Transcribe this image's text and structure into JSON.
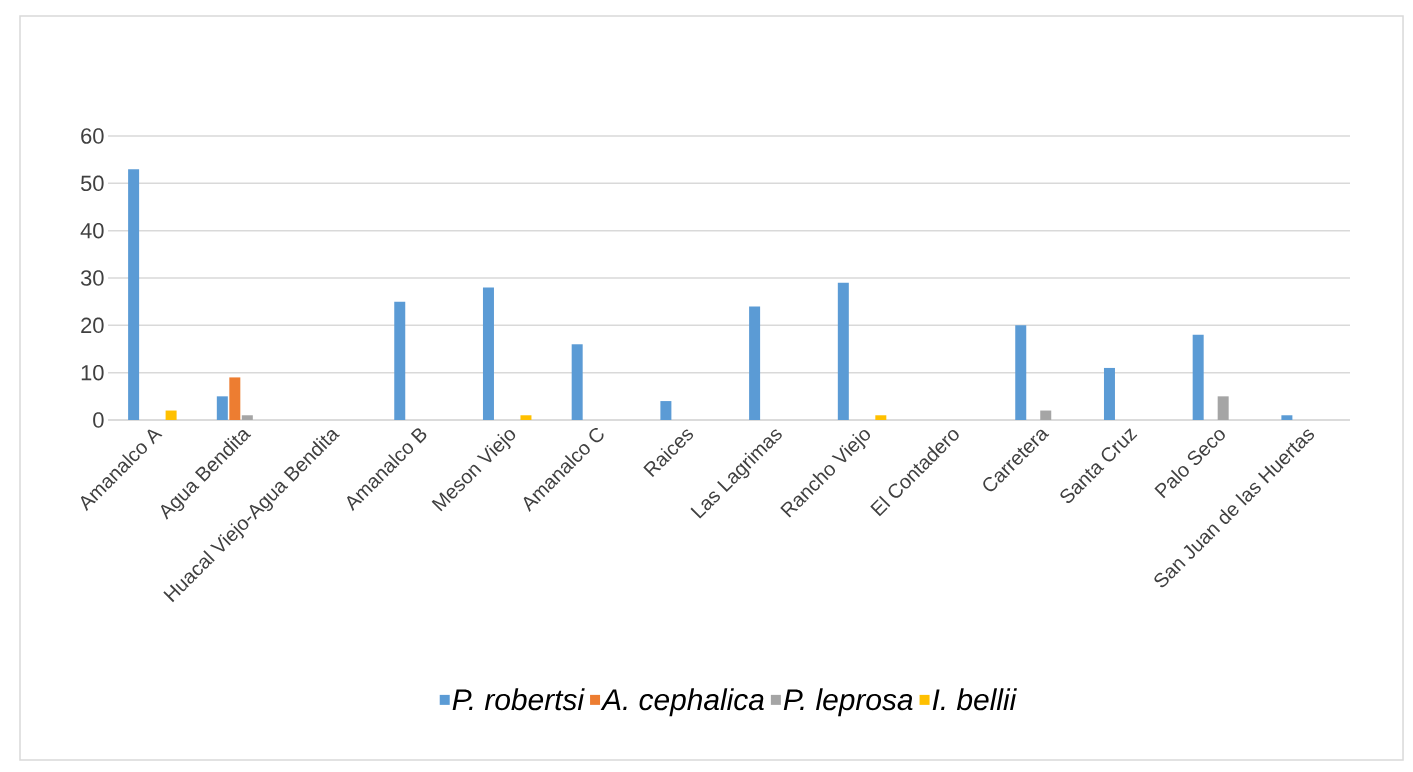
{
  "chart_data": {
    "type": "bar",
    "categories": [
      "Amanalco A",
      "Agua Bendita",
      "Huacal Viejo-Agua Bendita",
      "Amanalco B",
      "Meson Viejo",
      "Amanalco C",
      "Raices",
      "Las Lagrimas",
      "Rancho Viejo",
      "El Contadero",
      "Carretera",
      "Santa Cruz",
      "Palo Seco",
      "San Juan de las Huertas"
    ],
    "series": [
      {
        "name": "P. robertsi",
        "color": "#5b9bd5",
        "values": [
          53,
          5,
          0,
          25,
          28,
          16,
          4,
          24,
          29,
          0,
          20,
          11,
          18,
          1
        ]
      },
      {
        "name": "A. cephalica",
        "color": "#ed7d31",
        "values": [
          0,
          9,
          0,
          0,
          0,
          0,
          0,
          0,
          0,
          0,
          0,
          0,
          0,
          0
        ]
      },
      {
        "name": "P. leprosa",
        "color": "#a5a5a5",
        "values": [
          0,
          1,
          0,
          0,
          0,
          0,
          0,
          0,
          0,
          0,
          2,
          0,
          5,
          0
        ]
      },
      {
        "name": "I. bellii",
        "color": "#ffc000",
        "values": [
          2,
          0,
          0,
          0,
          1,
          0,
          0,
          0,
          1,
          0,
          0,
          0,
          0,
          0
        ]
      }
    ],
    "ylim": [
      0,
      60
    ],
    "yticks": [
      0,
      10,
      20,
      30,
      40,
      50,
      60
    ],
    "grid": "y",
    "legend": "bottom"
  }
}
